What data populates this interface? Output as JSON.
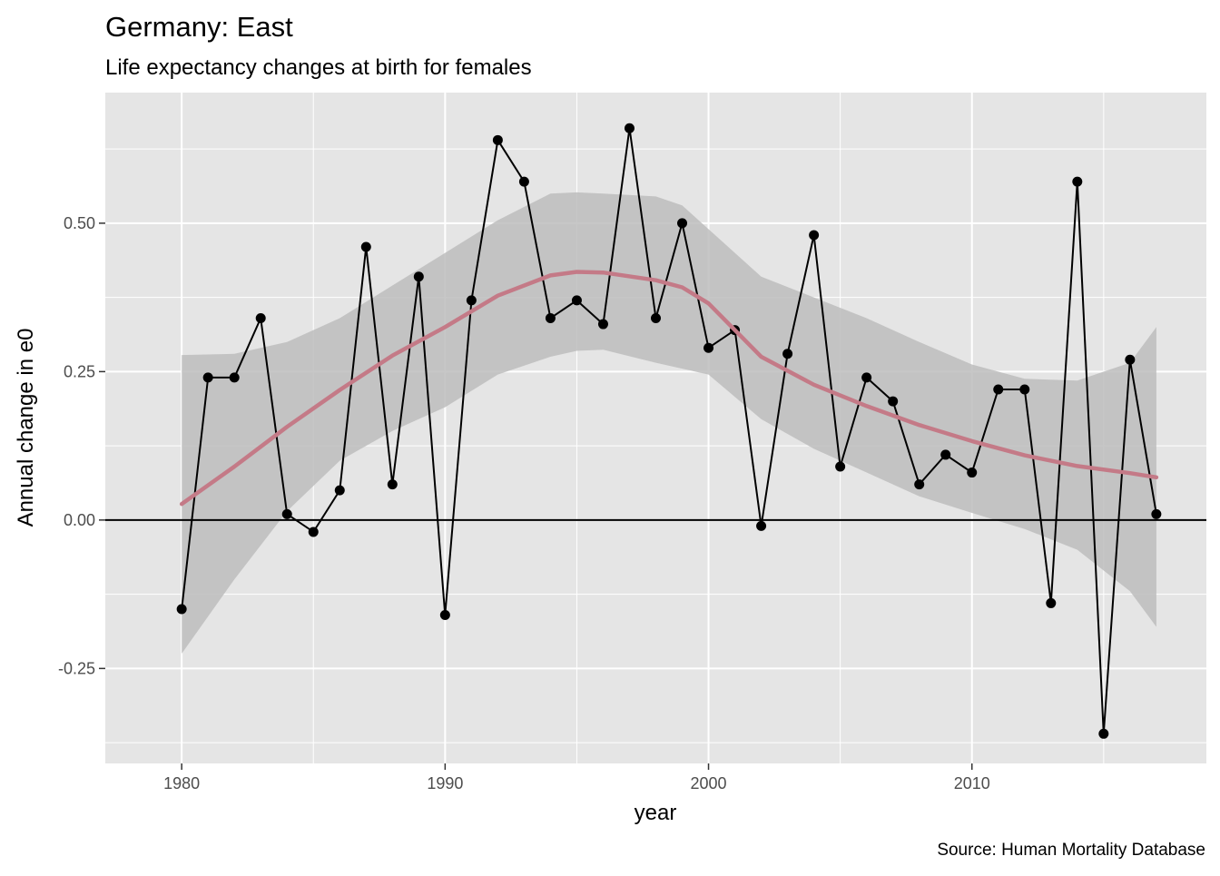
{
  "chart_data": {
    "type": "line",
    "title": "Germany: East",
    "subtitle": "Life expectancy changes at birth for females",
    "xlabel": "year",
    "ylabel": "Annual change in e0",
    "caption": "Source: Human Mortality Database",
    "xlim": [
      1977.1,
      2018.9
    ],
    "ylim": [
      -0.41,
      0.72
    ],
    "x_ticks": [
      1980,
      1990,
      2000,
      2010
    ],
    "x_tick_labels": [
      "1980",
      "1990",
      "2000",
      "2010"
    ],
    "y_ticks": [
      -0.25,
      0,
      0.25,
      0.5
    ],
    "y_tick_labels": [
      "-0.25",
      "0.00",
      "0.25",
      "0.50"
    ],
    "grid": true,
    "reference_line": 0,
    "colors": {
      "panel": "#e5e5e5",
      "grid": "#ffffff",
      "series": "#000000",
      "smooth": "#c47a87",
      "ribbon": "#bdbdbd"
    },
    "series": [
      {
        "x": [
          1980,
          1981,
          1982,
          1983,
          1984,
          1985,
          1986,
          1987,
          1988,
          1989,
          1990,
          1991,
          1992,
          1993,
          1994,
          1995,
          1996,
          1997,
          1998,
          1999,
          2000,
          2001,
          2002,
          2003,
          2004,
          2005,
          2006,
          2007,
          2008,
          2009,
          2010,
          2011,
          2012,
          2013,
          2014,
          2015,
          2016,
          2017
        ],
        "y": [
          -0.15,
          0.24,
          0.24,
          0.34,
          0.01,
          -0.02,
          0.05,
          0.46,
          0.06,
          0.41,
          -0.16,
          0.37,
          0.64,
          0.57,
          0.34,
          0.37,
          0.33,
          0.66,
          0.34,
          0.5,
          0.29,
          0.32,
          -0.01,
          0.28,
          0.48,
          0.09,
          0.24,
          0.2,
          0.06,
          0.11,
          0.08,
          0.22,
          0.22,
          -0.14,
          0.57,
          -0.36,
          0.27,
          0.01
        ]
      }
    ],
    "smooth": {
      "x": [
        1980,
        1982,
        1984,
        1986,
        1988,
        1990,
        1992,
        1994,
        1995,
        1996,
        1998,
        1999,
        2000,
        2002,
        2004,
        2006,
        2008,
        2010,
        2012,
        2014,
        2016,
        2017
      ],
      "fit": [
        0.027,
        0.09,
        0.157,
        0.219,
        0.277,
        0.325,
        0.378,
        0.412,
        0.418,
        0.417,
        0.404,
        0.392,
        0.365,
        0.275,
        0.228,
        0.192,
        0.16,
        0.133,
        0.109,
        0.091,
        0.079,
        0.072
      ],
      "lower": [
        -0.225,
        -0.1,
        0.015,
        0.1,
        0.15,
        0.19,
        0.245,
        0.275,
        0.285,
        0.287,
        0.265,
        0.255,
        0.245,
        0.17,
        0.12,
        0.08,
        0.04,
        0.012,
        -0.015,
        -0.05,
        -0.12,
        -0.18
      ],
      "upper": [
        0.278,
        0.28,
        0.3,
        0.34,
        0.395,
        0.45,
        0.505,
        0.55,
        0.552,
        0.55,
        0.545,
        0.53,
        0.49,
        0.41,
        0.375,
        0.34,
        0.3,
        0.262,
        0.238,
        0.235,
        0.265,
        0.325
      ]
    }
  }
}
